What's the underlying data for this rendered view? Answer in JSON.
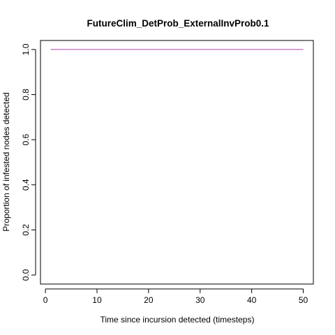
{
  "chart_data": {
    "type": "line",
    "title": "FutureClim_DetProb_ExternalInvProb0.1",
    "xlabel": "Time since incursion detected (timesteps)",
    "ylabel": "Proportion of infested nodes detected",
    "xlim": [
      -0.96,
      51.96
    ],
    "ylim": [
      -0.04,
      1.04
    ],
    "x_ticks": [
      0,
      10,
      20,
      30,
      40,
      50
    ],
    "y_ticks": [
      0.0,
      0.2,
      0.4,
      0.6,
      0.8,
      1.0
    ],
    "x_tick_labels": [
      "0",
      "10",
      "20",
      "30",
      "40",
      "50"
    ],
    "y_tick_labels": [
      "0.0",
      "0.2",
      "0.4",
      "0.6",
      "0.8",
      "1.0"
    ],
    "grid": false,
    "series": [
      {
        "color": "#b040b0",
        "x": [
          1,
          50
        ],
        "y": [
          1.0,
          1.0
        ]
      }
    ]
  }
}
